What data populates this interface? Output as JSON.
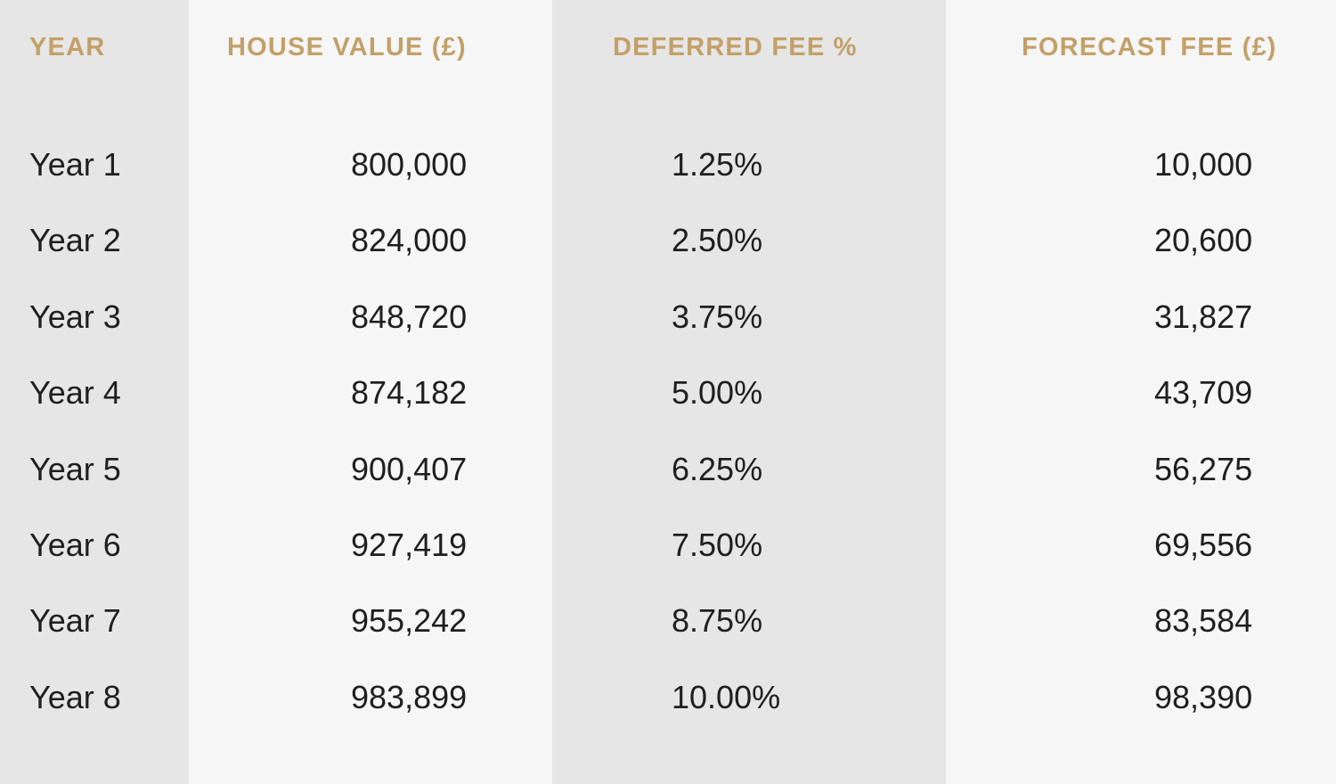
{
  "table": {
    "headers": {
      "year": "YEAR",
      "house_value": "HOUSE VALUE (£)",
      "deferred_fee": "DEFERRED FEE %",
      "forecast_fee": "FORECAST FEE (£)"
    },
    "rows": [
      {
        "year": "Year 1",
        "house_value": "800,000",
        "deferred_fee": "1.25%",
        "forecast_fee": "10,000"
      },
      {
        "year": "Year 2",
        "house_value": "824,000",
        "deferred_fee": "2.50%",
        "forecast_fee": "20,600"
      },
      {
        "year": "Year 3",
        "house_value": "848,720",
        "deferred_fee": "3.75%",
        "forecast_fee": "31,827"
      },
      {
        "year": "Year 4",
        "house_value": "874,182",
        "deferred_fee": "5.00%",
        "forecast_fee": "43,709"
      },
      {
        "year": "Year 5",
        "house_value": "900,407",
        "deferred_fee": "6.25%",
        "forecast_fee": "56,275"
      },
      {
        "year": "Year 6",
        "house_value": "927,419",
        "deferred_fee": "7.50%",
        "forecast_fee": "69,556"
      },
      {
        "year": "Year 7",
        "house_value": "955,242",
        "deferred_fee": "8.75%",
        "forecast_fee": "83,584"
      },
      {
        "year": "Year 8",
        "house_value": "983,899",
        "deferred_fee": "10.00%",
        "forecast_fee": "98,390"
      }
    ]
  },
  "colors": {
    "header_text": "#c3a068",
    "body_text": "#1f1f1f",
    "shaded_column": "#e6e6e6",
    "light_column": "#f6f6f6"
  }
}
